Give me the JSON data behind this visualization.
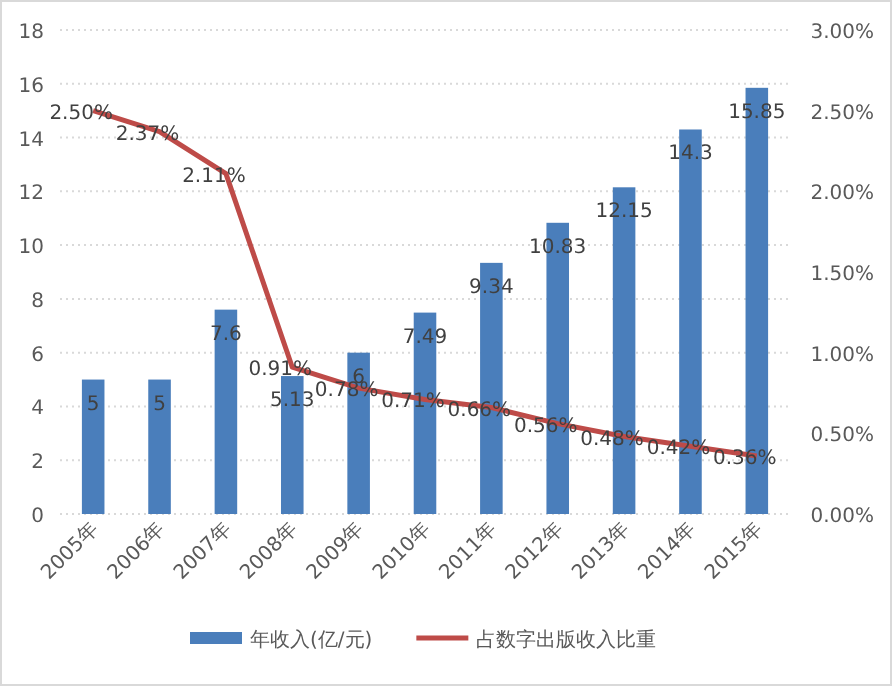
{
  "chart_data": {
    "type": "bar",
    "categories": [
      "2005年",
      "2006年",
      "2007年",
      "2008年",
      "2009年",
      "2010年",
      "2011年",
      "2012年",
      "2013年",
      "2014年",
      "2015年"
    ],
    "series": [
      {
        "name": "年收入(亿/元)",
        "color": "#4a7ebb",
        "values": [
          5,
          5,
          7.6,
          5.13,
          6,
          7.49,
          9.34,
          10.83,
          12.15,
          14.3,
          15.85
        ],
        "value_labels": [
          "5",
          "5",
          "7.6",
          "5.13",
          "6",
          "7.49",
          "9.34",
          "10.83",
          "12.15",
          "14.3",
          "15.85"
        ]
      },
      {
        "name": "占数字出版收入比重",
        "type": "line",
        "axis": "y2",
        "color": "#be4b48",
        "values": [
          2.5,
          2.37,
          2.11,
          0.91,
          0.78,
          0.71,
          0.66,
          0.56,
          0.48,
          0.42,
          0.36
        ],
        "value_labels": [
          "2.50%",
          "2.37%",
          "2.11%",
          "0.91%",
          "0.78%",
          "0.71%",
          "0.66%",
          "0.56%",
          "0.48%",
          "0.42%",
          "0.36%"
        ]
      }
    ],
    "ylim": [
      0,
      18
    ],
    "yticks": [
      0,
      2,
      4,
      6,
      8,
      10,
      12,
      14,
      16,
      18
    ],
    "y2lim": [
      0,
      3
    ],
    "y2ticks": [
      {
        "value": 0,
        "label": "0.00%"
      },
      {
        "value": 0.5,
        "label": "0.50%"
      },
      {
        "value": 1,
        "label": "1.00%"
      },
      {
        "value": 1.5,
        "label": "1.50%"
      },
      {
        "value": 2,
        "label": "2.00%"
      },
      {
        "value": 2.5,
        "label": "2.50%"
      },
      {
        "value": 3,
        "label": "3.00%"
      }
    ],
    "grid": "y",
    "legend": "bottom",
    "marker": "none",
    "line_style": "solid"
  }
}
